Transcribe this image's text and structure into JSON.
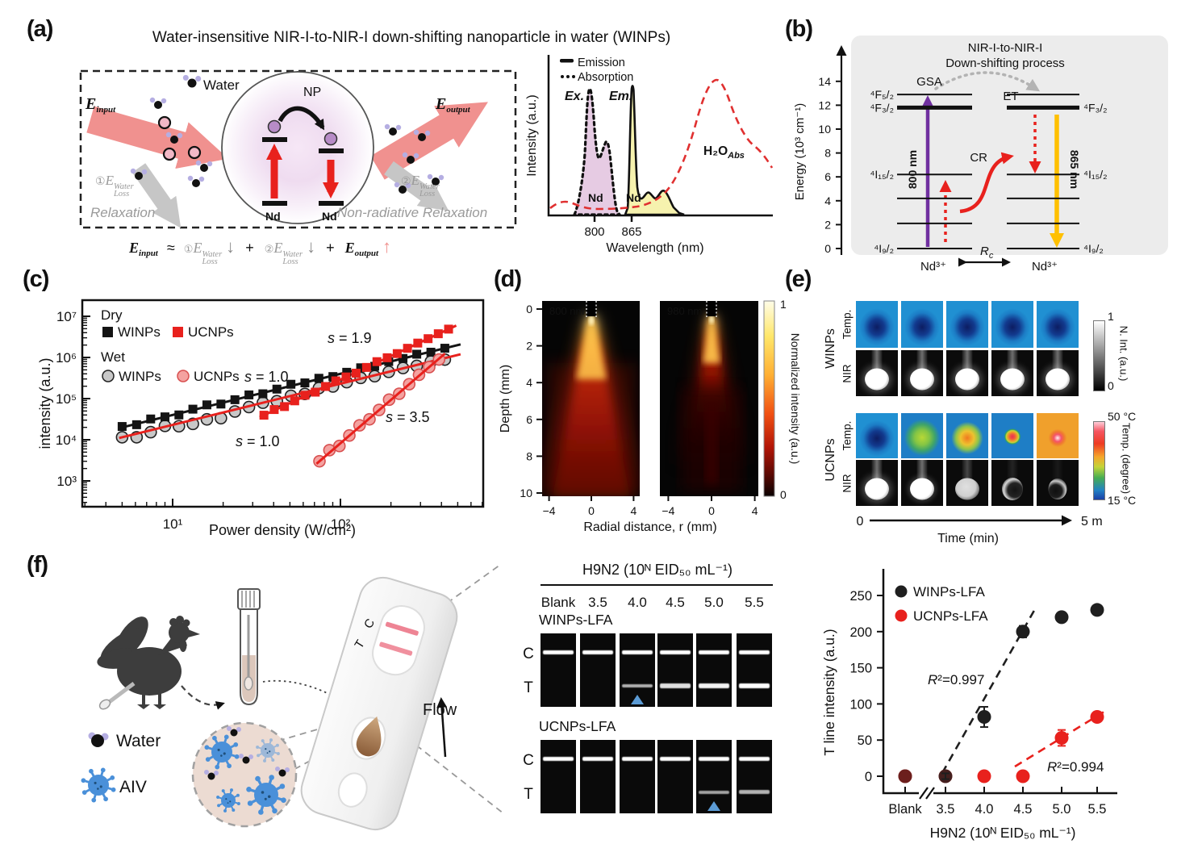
{
  "panel_a": {
    "label": "(a)",
    "title": "Water-insensitive NIR-I-to-NIR-I down-shifting nanoparticle in water (WINPs)",
    "water_label": "Water",
    "np_label": "NP",
    "nd_left": "Nd",
    "nd_right": "Nd",
    "e_input": {
      "base": "E",
      "sub": "input"
    },
    "e_output": {
      "base": "E",
      "sub": "output"
    },
    "loss1": {
      "prefix": "①",
      "base": "E",
      "sup": "Water",
      "sub": "Loss"
    },
    "loss2": {
      "prefix": "②",
      "base": "E",
      "sup": "Water",
      "sub": "Loss"
    },
    "relaxation_label": "Relaxation",
    "nonradiative_label": "Non-radiative Relaxation",
    "equation": {
      "approx": "≈",
      "plus1": "+",
      "plus2": "+",
      "down1": "↓",
      "down2": "↓",
      "up": "↑"
    },
    "spectrum": {
      "legend": [
        {
          "label": "Emission",
          "style": "solid"
        },
        {
          "label": "Absorption",
          "style": "dotted"
        }
      ],
      "ex_label": "Ex.",
      "em_label": "Em.",
      "nd_ex": "Nd",
      "nd_em": "Nd",
      "h2o_label": {
        "base": "H₂O",
        "sub": "Abs"
      },
      "x_ticks": [
        "800",
        "865"
      ],
      "xlabel": "Wavelength (nm)",
      "ylabel": "Intensity (a.u.)"
    }
  },
  "panel_b": {
    "label": "(b)",
    "title_line1": "NIR-I-to-NIR-I",
    "title_line2": "Down-shifting process",
    "ylabel": "Energy (10³ cm⁻¹)",
    "yticks": [
      0,
      2,
      4,
      6,
      8,
      10,
      12,
      14
    ],
    "levels": [
      {
        "E": 0,
        "label": "⁴I₉/₂",
        "right_label": true
      },
      {
        "E": 2.1
      },
      {
        "E": 4.2
      },
      {
        "E": 6.2,
        "label": "⁴I₁₅/₂",
        "right_label": true
      },
      {
        "E": 11.8,
        "label": "⁴F₃/₂",
        "right_label": true,
        "thick": true
      },
      {
        "E": 12.9,
        "label": "⁴F₅/₂",
        "right_label": false
      }
    ],
    "gsa_label": "GSA",
    "et_label": "ET",
    "cr_label": "CR",
    "pump_label": "800 nm",
    "emit_label": "865 nm",
    "rc": {
      "base": "R",
      "sub": "c"
    },
    "ion_left": "Nd³⁺",
    "ion_right": "Nd³⁺"
  },
  "panel_c": {
    "label": "(c)"
  },
  "panel_d": {
    "label": "(d)"
  },
  "panel_e": {
    "label": "(e)",
    "groups": [
      {
        "name": "WINPs",
        "rows": [
          {
            "kind": "Temp.",
            "frames": [
              "t-cool",
              "t-cool",
              "t-cool",
              "t-cool",
              "t-cool"
            ]
          },
          {
            "kind": "NIR",
            "frames": [
              "n-bright",
              "n-bright",
              "n-bright",
              "n-bright",
              "n-bright"
            ]
          }
        ]
      },
      {
        "name": "UCNPs",
        "rows": [
          {
            "kind": "Temp.",
            "frames": [
              "t-cool",
              "t-green",
              "t-orange",
              "t-red",
              "t-hot"
            ]
          },
          {
            "kind": "NIR",
            "frames": [
              "n-bright",
              "n-bright2",
              "n-dim1",
              "n-dim2",
              "n-dim3"
            ]
          }
        ]
      }
    ],
    "colorbar_top": {
      "label": "N. Int. (a.u.)",
      "tick_top": "1",
      "tick_bottom": "0"
    },
    "colorbar_bottom": {
      "label": "Temp. (degree)",
      "tick_top": "50 °C",
      "tick_bottom": "15 °C"
    },
    "time_axis": {
      "start": "0",
      "end": "5 m",
      "label": "Time (min)"
    }
  },
  "panel_f": {
    "label": "(f)",
    "legend_water": "Water",
    "legend_aiv": "AIV",
    "flow_label": "Flow",
    "cassette_t": "T",
    "cassette_c": "C",
    "strips": {
      "title": "H9N2 (10ᴺ EID₅₀ mL⁻¹)",
      "columns": [
        "Blank",
        "3.5",
        "4.0",
        "4.5",
        "5.0",
        "5.5"
      ],
      "rows": [
        {
          "name": "WINPs-LFA",
          "c_label": "C",
          "t_label": "T",
          "c_line": [
            1,
            1,
            1,
            1,
            1,
            1
          ],
          "t_line": [
            0,
            0,
            0.5,
            0.8,
            0.92,
            1
          ],
          "lod_index": 2
        },
        {
          "name": "UCNPs-LFA",
          "c_label": "C",
          "t_label": "T",
          "c_line": [
            1,
            1,
            1,
            1,
            1,
            1
          ],
          "t_line": [
            0,
            0,
            0,
            0,
            0.42,
            0.52
          ],
          "lod_index": 4
        }
      ]
    }
  },
  "chart_data": [
    {
      "id": "a_spectrum",
      "type": "area",
      "title": "",
      "xlabel": "Wavelength (nm)",
      "ylabel": "Intensity (a.u.)",
      "x_ticks": [
        800,
        865
      ],
      "legend": [
        "Emission",
        "Absorption"
      ],
      "series": [
        {
          "name": "Nd excitation (Ex.)",
          "line": "dotted black",
          "fill": "#e6cbe3",
          "peak_nm": 800,
          "x_range_nm": [
            770,
            840
          ]
        },
        {
          "name": "Nd emission (Em.)",
          "line": "solid black",
          "fill": "#f6f2ae",
          "peak_nm": 865,
          "x_range_nm": [
            855,
            950
          ]
        },
        {
          "name": "H₂O absorption",
          "line": "dashed red",
          "fill": "none",
          "peak_nm": 975
        }
      ]
    },
    {
      "id": "c_power_dependence",
      "type": "scatter",
      "x_scale": "log",
      "y_scale": "log",
      "xlabel": "Power density (W/cm²)",
      "ylabel": "intensity (a.u.)",
      "xtick_labels": [
        {
          "v": 10,
          "label": "10¹"
        },
        {
          "v": 100,
          "label": "10²"
        }
      ],
      "ytick_labels": [
        {
          "d": 3,
          "label": "10³"
        },
        {
          "d": 4,
          "label": "10⁴"
        },
        {
          "d": 5,
          "label": "10⁵"
        },
        {
          "d": 6,
          "label": "10⁶"
        },
        {
          "d": 7,
          "label": "10⁷"
        }
      ],
      "xlim": [
        3,
        700
      ],
      "ylim": [
        300,
        20000000
      ],
      "legend_groups": {
        "dry": "Dry",
        "wet": "Wet"
      },
      "series": [
        {
          "name": "Dry WINPs",
          "label_short": "WINPs",
          "marker": "square",
          "color": "#141414",
          "slope_label": "s = 1.0",
          "fit": {
            "coeff": 4000,
            "exponent": 1.0,
            "range": [
              4.8,
              520
            ],
            "color": "#141414"
          },
          "x": [
            5,
            6.1,
            7.4,
            9,
            10.9,
            13.2,
            16,
            19.4,
            23.5,
            28.5,
            34.5,
            41.8,
            50.7,
            61.4,
            74.4,
            90.2,
            109,
            132,
            160,
            194,
            236,
            285,
            346,
            419
          ],
          "y": [
            21000,
            23200,
            32000,
            36000,
            40100,
            55400,
            70400,
            73700,
            94000,
            123000,
            131000,
            170000,
            223000,
            241000,
            312000,
            343000,
            436000,
            561000,
            610000,
            793000,
            944000,
            1199000,
            1342000,
            1676000
          ]
        },
        {
          "name": "Dry UCNPs",
          "label_short": "UCNPs",
          "marker": "square",
          "color": "#e8211d",
          "slope_label": "s = 1.9",
          "fit": {
            "coeff": 46,
            "exponent": 1.9,
            "range": [
              33,
              490
            ],
            "color": "#e8211d"
          },
          "x": [
            35,
            40.3,
            46.4,
            53.4,
            61.5,
            70.8,
            81.5,
            93.8,
            108,
            124,
            143,
            165,
            190,
            218,
            251,
            289,
            333,
            383,
            441
          ],
          "y": [
            39500,
            54200,
            64000,
            88200,
            120800,
            143500,
            197000,
            269900,
            336000,
            415200,
            572000,
            790700,
            984000,
            1241600,
            1670000,
            2233800,
            2860000,
            3767300,
            4880000
          ]
        },
        {
          "name": "Wet WINPs",
          "label_short": "WINPs",
          "marker": "circle",
          "color": "#c8c8c8",
          "slope_label": "s = 1.0",
          "fit": {
            "coeff": 2300,
            "exponent": 1.0,
            "range": [
              4.8,
              520
            ],
            "color": "#e8211d"
          },
          "x": [
            5,
            6.1,
            7.4,
            9,
            10.9,
            13.2,
            16,
            19.4,
            23.5,
            28.5,
            34.5,
            41.8,
            50.7,
            61.4,
            74.4,
            90.2,
            109,
            132,
            160,
            194,
            236,
            285,
            346,
            419
          ],
          "y": [
            11500,
            11500,
            15300,
            21700,
            21300,
            24300,
            31300,
            33400,
            48700,
            62300,
            79400,
            86500,
            117000,
            130000,
            180000,
            197000,
            251000,
            319000,
            350000,
            446000,
            554000,
            623000,
            796000,
            887000
          ]
        },
        {
          "name": "Wet UCNPs",
          "label_short": "UCNPs",
          "marker": "circle",
          "color": "#f4a2a0",
          "slope_label": "s = 3.5",
          "fit": {
            "coeff": 0.000822,
            "exponent": 3.5,
            "range": [
              72,
              420
            ],
            "color": "#e8211d"
          },
          "x": [
            75,
            86,
            98.6,
            113,
            130,
            149,
            170,
            195,
            224,
            257,
            294,
            338,
            387
          ],
          "y": [
            3000,
            5580,
            7060,
            12700,
            22400,
            31400,
            53000,
            94200,
            131100,
            224000,
            379100,
            583000,
            892100
          ]
        }
      ]
    },
    {
      "id": "d_beam_profiles",
      "type": "heatmap",
      "maps": [
        {
          "label": "800 nm",
          "description": "broad, deep light-penetration cone in water"
        },
        {
          "label": "980 nm",
          "description": "narrow, shallow light-penetration cone in water"
        }
      ],
      "xlabel": "Radial distance, r (mm)",
      "ylabel": "Depth (mm)",
      "x_ticks": [
        -4,
        0,
        4
      ],
      "y_ticks": [
        0,
        2,
        4,
        6,
        8,
        10
      ],
      "colorbar": {
        "label": "Normalized intensity (a.u.)",
        "tick_top": "1",
        "tick_bottom": "0"
      }
    },
    {
      "id": "f_dose_response",
      "type": "scatter",
      "xlabel": "H9N2 (10ᴺ EID₅₀ mL⁻¹)",
      "ylabel": "T line intensity (a.u.)",
      "categories": [
        "Blank",
        "3.5",
        "4.0",
        "4.5",
        "5.0",
        "5.5"
      ],
      "yticks": [
        0,
        50,
        100,
        150,
        200,
        250
      ],
      "ylim": [
        -30,
        280
      ],
      "axis_break_after_first": true,
      "series": [
        {
          "name": "WINPs-LFA",
          "color": "#1f1f1f",
          "values": [
            0,
            0,
            82,
            200,
            220,
            230
          ],
          "errors": [
            3,
            4,
            14,
            8,
            5,
            6
          ],
          "r_squared": "R²=0.997",
          "fit_style": "dashed"
        },
        {
          "name": "UCNPs-LFA",
          "color": "#e8211d",
          "values": [
            0,
            0,
            0,
            0,
            53,
            82
          ],
          "errors": [
            2,
            2,
            3,
            4,
            11,
            4
          ],
          "r_squared": "R²=0.994",
          "fit_style": "dashed"
        }
      ]
    }
  ]
}
